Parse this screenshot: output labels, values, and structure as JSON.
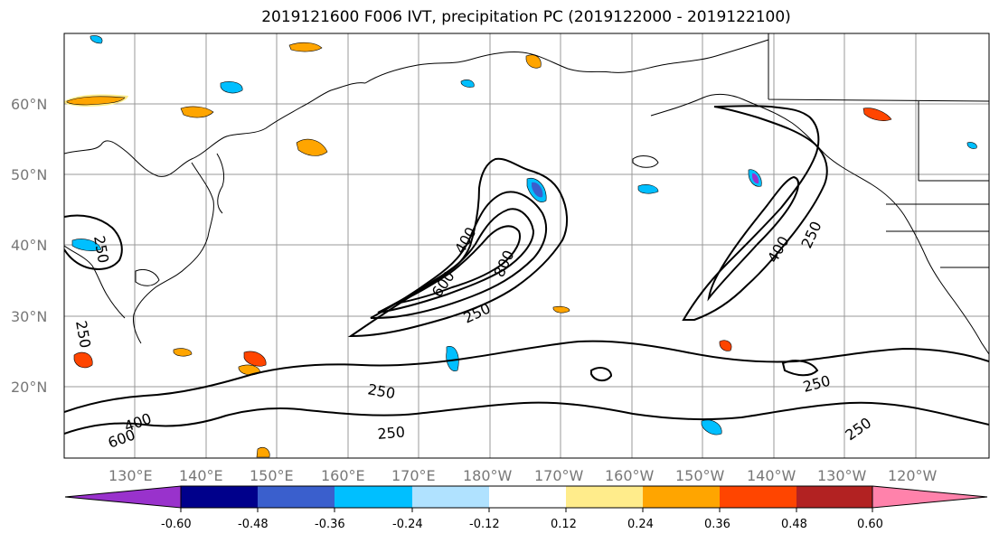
{
  "title": "2019121600 F006 IVT, precipitation PC (2019122000 - 2019122100)",
  "map": {
    "lat_labels": [
      "60°N",
      "50°N",
      "40°N",
      "30°N",
      "20°N"
    ],
    "lon_labels": [
      "130°E",
      "140°E",
      "150°E",
      "160°E",
      "170°E",
      "180°W",
      "170°W",
      "160°W",
      "150°W",
      "140°W",
      "130°W",
      "120°W"
    ],
    "contour_labels": [
      "250",
      "400",
      "600",
      "800",
      "250",
      "400",
      "250",
      "250",
      "250",
      "250",
      "400",
      "600",
      "250",
      "250"
    ]
  },
  "colorbar": {
    "tick_labels": [
      "-0.60",
      "-0.48",
      "-0.36",
      "-0.24",
      "-0.12",
      "0.12",
      "0.24",
      "0.36",
      "0.48",
      "0.60"
    ],
    "colors": [
      "#9932cc",
      "#00008b",
      "#3a5fcd",
      "#00bfff",
      "#b0e2ff",
      "#ffffff",
      "#ffec8b",
      "#ffa500",
      "#ff4500",
      "#b22222",
      "#ff82ab"
    ]
  }
}
